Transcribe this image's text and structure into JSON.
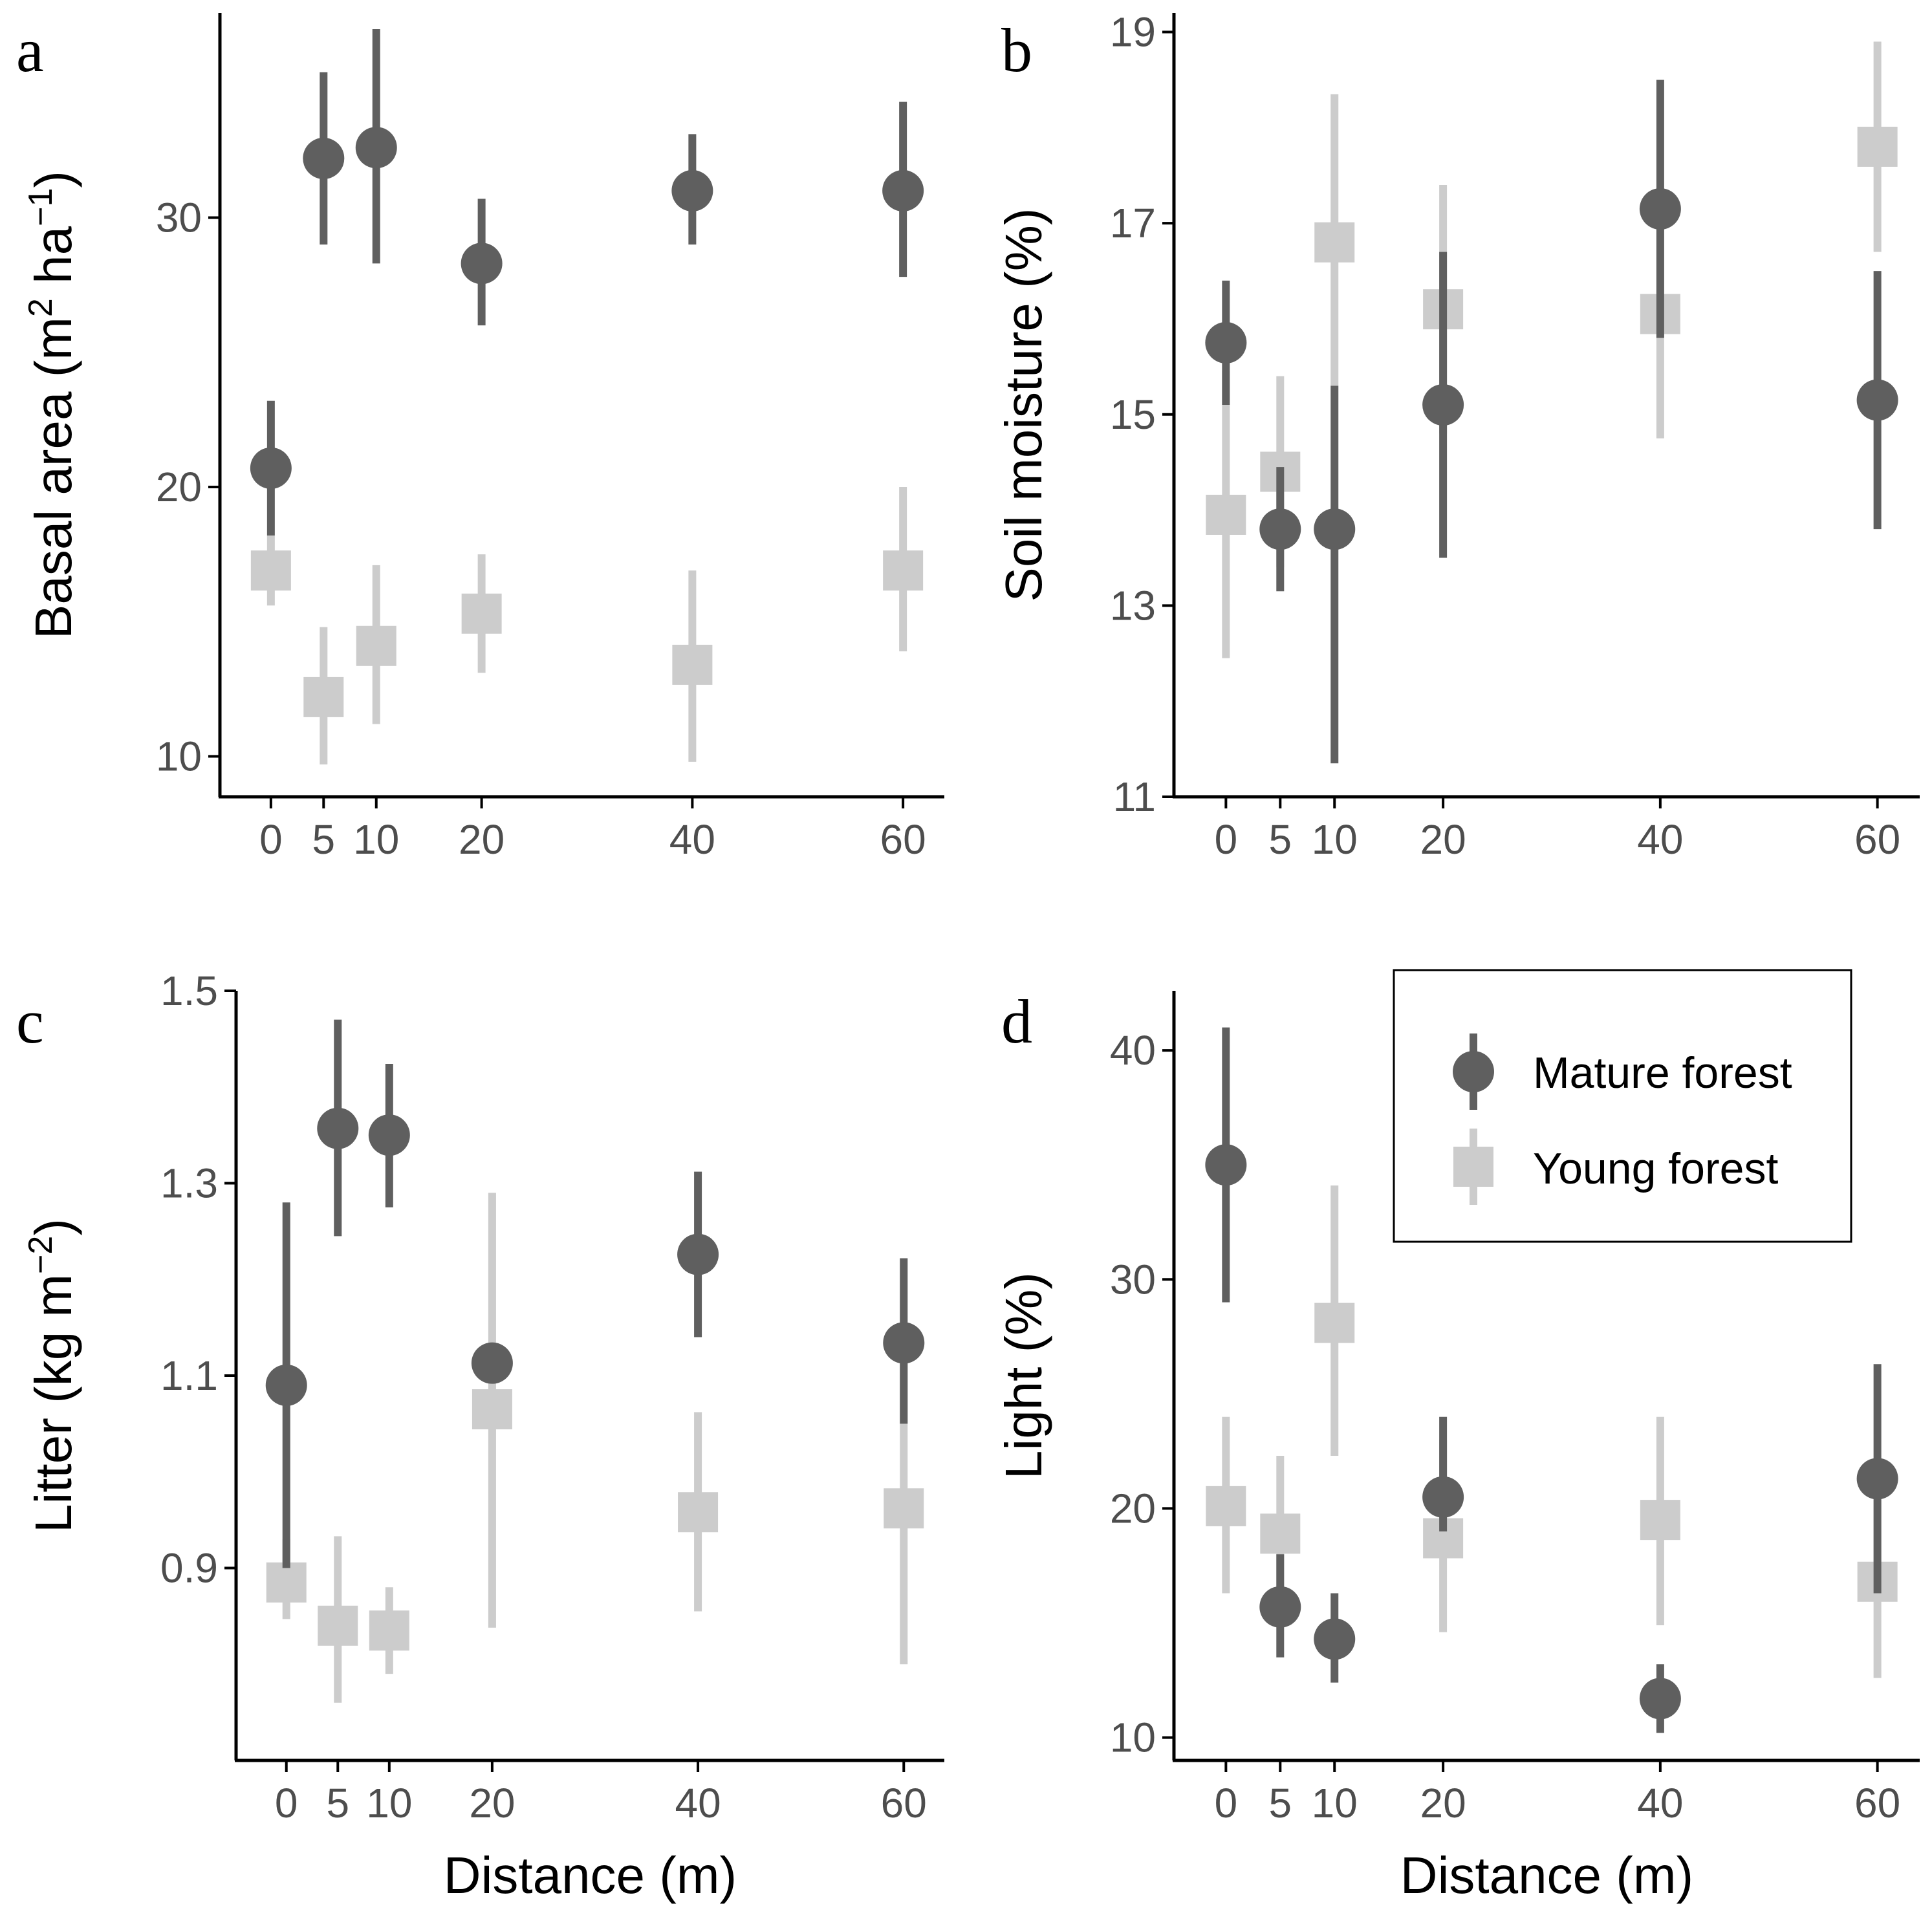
{
  "colors": {
    "mature": "#5f5f5f",
    "young": "#cccccc"
  },
  "legend": {
    "mature_label": "Mature forest",
    "young_label": "Young forest"
  },
  "chart_data": [
    {
      "panel": "a",
      "type": "scatter",
      "xlabel": "",
      "ylabel_parts": [
        "Basal area (m",
        "2",
        "  ha",
        "−1",
        ")"
      ],
      "ylim": [
        8.5,
        37.6
      ],
      "yticks": [
        10,
        20,
        30
      ],
      "xlim": [
        -3,
        63
      ],
      "xticks": [
        0,
        5,
        10,
        20,
        40,
        60
      ],
      "series": [
        {
          "name": "Mature forest",
          "key": "mature",
          "shape": "circle",
          "x": [
            0,
            5,
            10,
            20,
            40,
            60
          ],
          "y": [
            20.7,
            32.2,
            32.6,
            28.3,
            31.0,
            31.0
          ],
          "lower": [
            18.2,
            29.0,
            28.3,
            26.0,
            29.0,
            27.8
          ],
          "upper": [
            23.2,
            35.4,
            37.0,
            30.7,
            33.1,
            34.3
          ]
        },
        {
          "name": "Young forest",
          "key": "young",
          "shape": "square",
          "x": [
            0,
            5,
            10,
            20,
            40,
            60
          ],
          "y": [
            16.9,
            12.2,
            14.1,
            15.3,
            13.4,
            16.9
          ],
          "lower": [
            15.6,
            9.7,
            11.2,
            13.1,
            9.8,
            13.9
          ],
          "upper": [
            18.2,
            14.8,
            17.1,
            17.5,
            16.9,
            20.0
          ]
        }
      ]
    },
    {
      "panel": "b",
      "type": "scatter",
      "xlabel": "",
      "ylabel_parts": [
        "Soil moisture (%)"
      ],
      "ylim": [
        11.0,
        19.2
      ],
      "yticks": [
        11,
        13,
        15,
        17,
        19
      ],
      "xlim": [
        -3,
        63
      ],
      "xticks": [
        0,
        5,
        10,
        20,
        40,
        60
      ],
      "series": [
        {
          "name": "Mature forest",
          "key": "mature",
          "shape": "circle",
          "x": [
            0,
            5,
            10,
            20,
            40,
            60
          ],
          "y": [
            15.75,
            13.8,
            13.8,
            15.1,
            17.15,
            15.15
          ],
          "lower": [
            15.1,
            13.15,
            11.35,
            13.5,
            15.8,
            13.8
          ],
          "upper": [
            16.4,
            14.45,
            15.3,
            16.7,
            18.5,
            16.5
          ]
        },
        {
          "name": "Young forest",
          "key": "young",
          "shape": "square",
          "x": [
            0,
            5,
            10,
            20,
            40,
            60
          ],
          "y": [
            13.95,
            14.4,
            16.8,
            16.1,
            16.05,
            17.8
          ],
          "lower": [
            12.45,
            13.4,
            15.3,
            14.8,
            14.75,
            16.7
          ],
          "upper": [
            15.45,
            15.4,
            18.35,
            17.4,
            17.35,
            18.9
          ]
        }
      ]
    },
    {
      "panel": "c",
      "type": "scatter",
      "xlabel": "Distance (m)",
      "ylabel_parts": [
        "Litter (kg m",
        "−2",
        ")"
      ],
      "ylim": [
        0.7,
        1.5
      ],
      "yticks": [
        0.9,
        1.1,
        1.3,
        1.5
      ],
      "xlim": [
        -3,
        63
      ],
      "xticks": [
        0,
        5,
        10,
        20,
        40,
        60
      ],
      "series": [
        {
          "name": "Mature forest",
          "key": "mature",
          "shape": "circle",
          "x": [
            0,
            5,
            10,
            20,
            40,
            60
          ],
          "y": [
            1.09,
            1.357,
            1.35,
            1.113,
            1.226,
            1.134
          ],
          "lower": [
            0.9,
            1.245,
            1.275,
            1.1,
            1.14,
            1.05
          ],
          "upper": [
            1.28,
            1.47,
            1.424,
            1.125,
            1.312,
            1.222
          ]
        },
        {
          "name": "Young forest",
          "key": "young",
          "shape": "square",
          "x": [
            0,
            5,
            10,
            20,
            40,
            60
          ],
          "y": [
            0.885,
            0.84,
            0.835,
            1.065,
            0.958,
            0.962
          ],
          "lower": [
            0.847,
            0.76,
            0.79,
            0.838,
            0.855,
            0.8
          ],
          "upper": [
            0.93,
            0.933,
            0.88,
            1.29,
            1.062,
            1.12
          ]
        }
      ]
    },
    {
      "panel": "d",
      "type": "scatter",
      "xlabel": "Distance (m)",
      "ylabel_parts": [
        "Light (%)"
      ],
      "ylim": [
        9.0,
        42.6
      ],
      "yticks": [
        10,
        20,
        30,
        40
      ],
      "xlim": [
        -3,
        63
      ],
      "xticks": [
        0,
        5,
        10,
        20,
        40,
        60
      ],
      "series": [
        {
          "name": "Mature forest",
          "key": "mature",
          "shape": "circle",
          "x": [
            0,
            5,
            10,
            20,
            40,
            60
          ],
          "y": [
            35.0,
            15.7,
            14.3,
            20.5,
            11.7,
            21.3
          ],
          "lower": [
            29.0,
            13.5,
            12.4,
            19.0,
            10.2,
            16.3
          ],
          "upper": [
            41.0,
            18.0,
            16.3,
            24.0,
            13.2,
            26.3
          ]
        },
        {
          "name": "Young forest",
          "key": "young",
          "shape": "square",
          "x": [
            0,
            5,
            10,
            20,
            40,
            60
          ],
          "y": [
            20.1,
            18.9,
            28.1,
            18.7,
            19.5,
            16.8
          ],
          "lower": [
            16.3,
            15.7,
            22.3,
            14.6,
            14.9,
            12.6
          ],
          "upper": [
            24.0,
            22.3,
            34.1,
            23.0,
            24.0,
            20.5
          ]
        }
      ]
    }
  ]
}
